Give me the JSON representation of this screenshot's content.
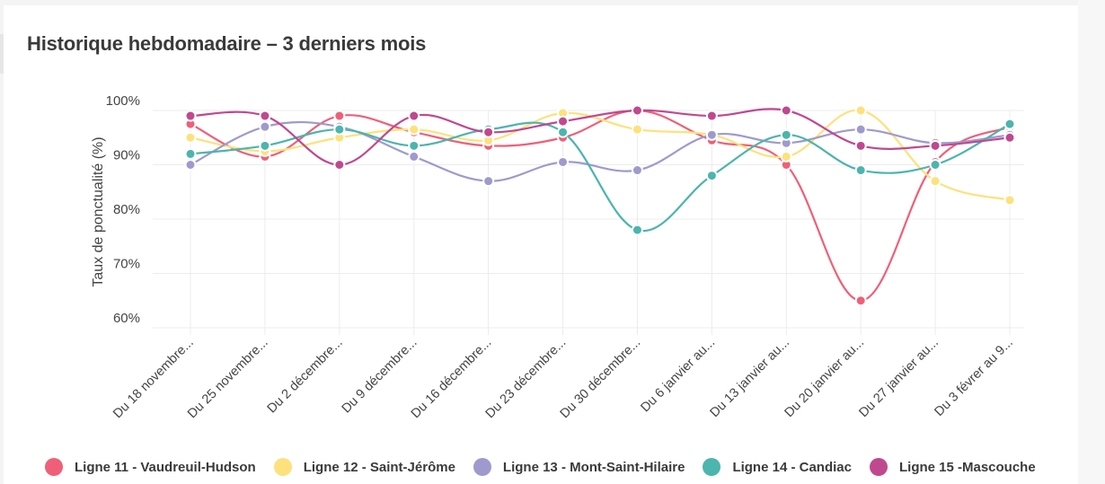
{
  "title": "Historique hebdomadaire – 3 derniers mois",
  "chart_data": {
    "type": "line",
    "ylabel": "Taux de ponctualité (%)",
    "xlabel": "",
    "ylim": [
      60,
      100
    ],
    "yticks": [
      "60%",
      "70%",
      "80%",
      "90%",
      "100%"
    ],
    "ytick_values": [
      60,
      70,
      80,
      90,
      100
    ],
    "grid": true,
    "legend_position": "bottom",
    "categories": [
      "Du 18 novembre...",
      "Du 25 novembre...",
      "Du 2 décembre...",
      "Du 9 décembre...",
      "Du 16 décembre...",
      "Du 23 décembre...",
      "Du 30 décembre...",
      "Du 6 janvier au...",
      "Du 13 janvier au...",
      "Du 20 janvier au...",
      "Du 27 janvier au...",
      "Du 3 févrer au 9..."
    ],
    "series": [
      {
        "name": "Ligne 11 - Vaudreuil-Hudson",
        "color": "#ef5f78",
        "values": [
          97.5,
          91.5,
          99,
          96,
          93.5,
          95,
          100,
          94.5,
          90,
          65,
          90.5,
          97
        ]
      },
      {
        "name": "Ligne 12 - Saint-Jérôme",
        "color": "#fde17c",
        "values": [
          95,
          92.5,
          95,
          96.5,
          94.5,
          99.5,
          96.5,
          95.5,
          91.5,
          100,
          87,
          83.5
        ]
      },
      {
        "name": "Ligne 13 - Mont-Saint-Hilaire",
        "color": "#9f9acd",
        "values": [
          90,
          97,
          97,
          91.5,
          87,
          90.5,
          89,
          95.5,
          94,
          96.5,
          94,
          95.5
        ]
      },
      {
        "name": "Ligne 14 - Candiac",
        "color": "#4cb5ad",
        "values": [
          92,
          93.5,
          96.5,
          93.5,
          96.5,
          96,
          78,
          88,
          95.5,
          89,
          90,
          97.5
        ]
      },
      {
        "name": "Ligne 15 -Mascouche",
        "color": "#c0488e",
        "values": [
          99,
          99,
          90,
          99,
          96,
          98,
          100,
          99,
          100,
          93.5,
          93.5,
          95
        ]
      }
    ]
  }
}
